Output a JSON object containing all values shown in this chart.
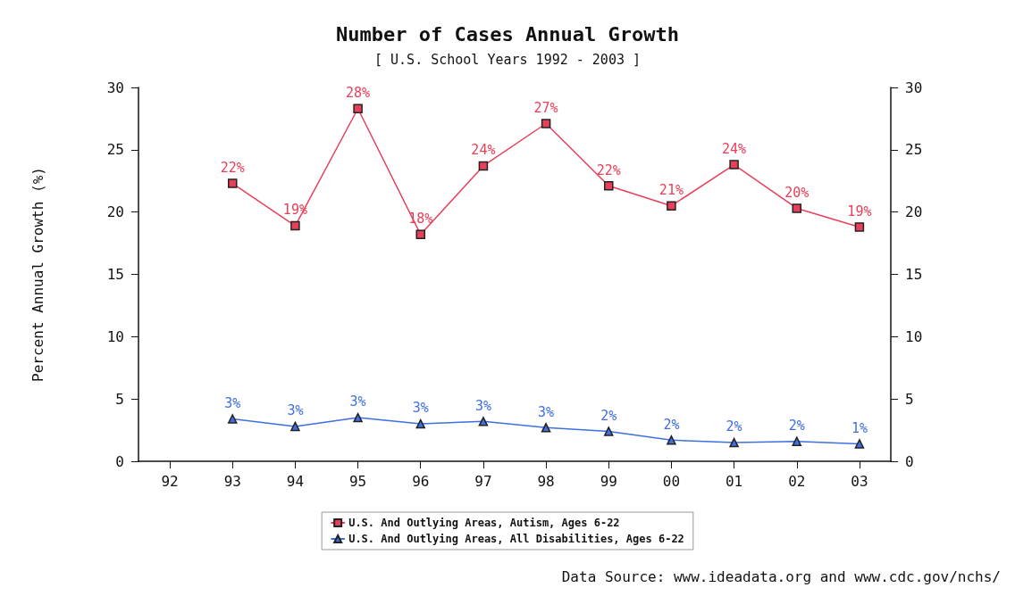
{
  "chart_data": {
    "type": "line",
    "title": "Number of Cases Annual Growth",
    "subtitle": "[ U.S. School Years 1992 - 2003 ]",
    "ylabel": "Percent Annual Growth (%)",
    "categories": [
      "92",
      "93",
      "94",
      "95",
      "96",
      "97",
      "98",
      "99",
      "00",
      "01",
      "02",
      "03"
    ],
    "series": [
      {
        "name": "U.S. And Outlying Areas, Autism, Ages 6-22",
        "color": "#e8405a",
        "marker": "square",
        "values": [
          null,
          22.3,
          18.9,
          28.3,
          18.2,
          23.7,
          27.1,
          22.1,
          20.5,
          23.8,
          20.3,
          18.8
        ],
        "value_labels": [
          null,
          "22%",
          "19%",
          "28%",
          "18%",
          "24%",
          "27%",
          "22%",
          "21%",
          "24%",
          "20%",
          "19%"
        ]
      },
      {
        "name": "U.S. And Outlying Areas, All Disabilities, Ages 6-22",
        "color": "#3f6fe0",
        "marker": "triangle",
        "values": [
          null,
          3.4,
          2.8,
          3.5,
          3.0,
          3.2,
          2.7,
          2.4,
          1.7,
          1.5,
          1.6,
          1.4
        ],
        "value_labels": [
          null,
          "3%",
          "3%",
          "3%",
          "3%",
          "3%",
          "3%",
          "2%",
          "2%",
          "2%",
          "2%",
          "1%"
        ]
      }
    ],
    "ylim": [
      0,
      30
    ],
    "yticks": [
      0,
      5,
      10,
      15,
      20,
      25,
      30
    ],
    "y2lim": [
      0,
      30
    ],
    "y2ticks": [
      0,
      5,
      10,
      15,
      20,
      25,
      30
    ],
    "grid": false,
    "legend": "bottom",
    "line_style": "solid",
    "annotations": [
      "Data Source: www.ideadata.org and www.cdc.gov/nchs/"
    ]
  }
}
